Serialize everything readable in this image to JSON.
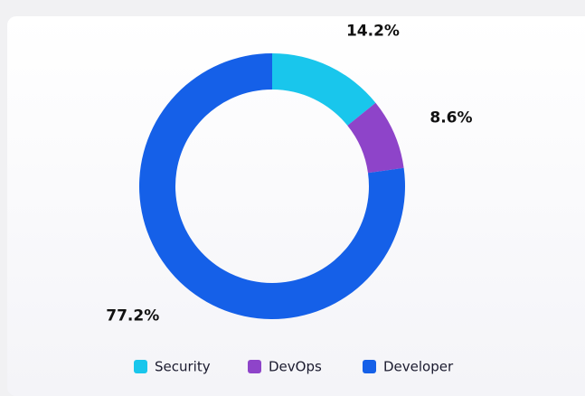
{
  "chart_data": {
    "type": "pie",
    "donut": true,
    "categories": [
      "Security",
      "DevOps",
      "Developer"
    ],
    "values": [
      14.2,
      8.6,
      77.2
    ],
    "value_labels": [
      "14.2%",
      "8.6%",
      "77.2%"
    ],
    "colors": [
      "#19c6ec",
      "#8e44c9",
      "#1560e8"
    ],
    "legend": "bottom"
  }
}
